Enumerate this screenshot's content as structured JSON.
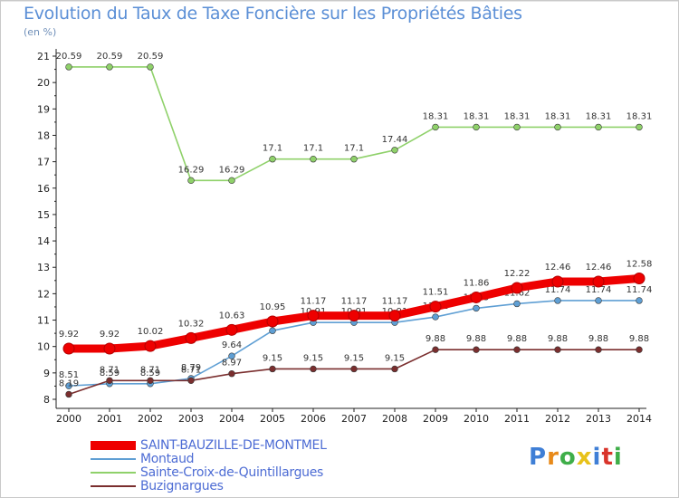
{
  "header": {
    "title": "Evolution du Taux de Taxe Foncière sur les Propriétés Bâties",
    "subtitle": "(en %)"
  },
  "logo": {
    "text": "Proxiti",
    "letters": [
      "P",
      "r",
      "o",
      "x",
      "i",
      "t",
      "i"
    ],
    "colors": [
      "#3f7fd6",
      "#e88a1a",
      "#3fae49",
      "#e8c21a",
      "#3f7fd6",
      "#d9342b",
      "#3fae49"
    ]
  },
  "chart_data": {
    "type": "line",
    "x": [
      2000,
      2001,
      2002,
      2003,
      2004,
      2005,
      2006,
      2007,
      2008,
      2009,
      2010,
      2011,
      2012,
      2013,
      2014
    ],
    "ylim": [
      8,
      21
    ],
    "yticks": [
      8,
      9,
      10,
      11,
      12,
      13,
      14,
      15,
      16,
      17,
      18,
      19,
      20,
      21
    ],
    "grid": false,
    "legend_position": "bottom",
    "series": [
      {
        "name": "Sainte-Croix-de-Quintillargues",
        "color": "#8fd16a",
        "values": [
          20.59,
          20.59,
          20.59,
          16.29,
          16.29,
          17.1,
          17.1,
          17.1,
          17.44,
          18.31,
          18.31,
          18.31,
          18.31,
          18.31,
          18.31
        ],
        "labels": [
          "20.59",
          "20.59",
          "20.59",
          "16.29",
          "16.29",
          "17.1",
          "17.1",
          "17.1",
          "17.44",
          "18.31",
          "18.31",
          "18.31",
          "18.31",
          "18.31",
          "18.31"
        ]
      },
      {
        "name": "Montaud",
        "color": "#5f9fd4",
        "values": [
          8.51,
          8.59,
          8.59,
          8.79,
          9.64,
          10.6,
          10.91,
          10.91,
          10.91,
          11.12,
          11.45,
          11.62,
          11.74,
          11.74,
          11.74
        ],
        "labels": [
          "8.51",
          "8.59",
          "8.59",
          "8.79",
          "9.64",
          "",
          "10.91",
          "10.91",
          "10.91",
          "11.12",
          "11.45",
          "11.62",
          "11.74",
          "11.74",
          "11.74"
        ]
      },
      {
        "name": "Buzignargues",
        "color": "#7a2e2e",
        "values": [
          8.19,
          8.71,
          8.71,
          8.71,
          8.97,
          9.15,
          9.15,
          9.15,
          9.15,
          9.88,
          9.88,
          9.88,
          9.88,
          9.88,
          9.88
        ],
        "labels": [
          "8.19",
          "8.71",
          "8.71",
          "8.71",
          "8.97",
          "9.15",
          "9.15",
          "9.15",
          "9.15",
          "9.88",
          "9.88",
          "9.88",
          "9.88",
          "9.88",
          "9.88"
        ]
      },
      {
        "name": "SAINT-BAUZILLE-DE-MONTMEL",
        "color": "#ee0000",
        "values": [
          9.92,
          9.92,
          10.02,
          10.32,
          10.63,
          10.95,
          11.17,
          11.17,
          11.17,
          11.51,
          11.86,
          12.22,
          12.46,
          12.46,
          12.58
        ],
        "labels": [
          "9.92",
          "9.92",
          "10.02",
          "10.32",
          "10.63",
          "10.95",
          "11.17",
          "11.17",
          "11.17",
          "11.51",
          "11.86",
          "12.22",
          "12.46",
          "12.46",
          "12.58"
        ]
      }
    ]
  },
  "legend": [
    {
      "name": "SAINT-BAUZILLE-DE-MONTMEL",
      "color": "#ee0000",
      "width": 10
    },
    {
      "name": "Montaud",
      "color": "#5f9fd4",
      "width": 2
    },
    {
      "name": "Sainte-Croix-de-Quintillargues",
      "color": "#8fd16a",
      "width": 2
    },
    {
      "name": "Buzignargues",
      "color": "#7a2e2e",
      "width": 2
    }
  ]
}
